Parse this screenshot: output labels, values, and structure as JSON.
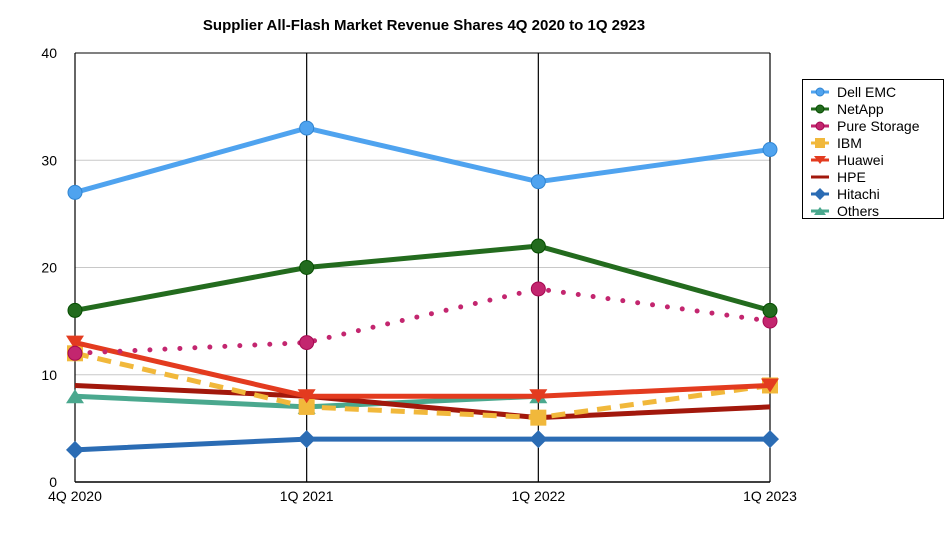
{
  "chart_data": {
    "type": "line",
    "title": "Supplier All-Flash Market Revenue Shares 4Q 2020 to 1Q 2923",
    "xlabel": "",
    "ylabel": "",
    "categories": [
      "4Q 2020",
      "1Q 2021",
      "1Q 2022",
      "1Q 2023"
    ],
    "ylim": [
      0,
      40
    ],
    "yticks": [
      0,
      10,
      20,
      30,
      40
    ],
    "grid": true,
    "legend_position": "right",
    "series": [
      {
        "name": "Dell EMC",
        "values": [
          27,
          33,
          28,
          31
        ],
        "color": "#4fa3ef",
        "marker": "circle",
        "dash": "solid"
      },
      {
        "name": "NetApp",
        "values": [
          16,
          20,
          22,
          16
        ],
        "color": "#236b1e",
        "marker": "circle",
        "dash": "solid"
      },
      {
        "name": "Pure Storage",
        "values": [
          12,
          13,
          18,
          15
        ],
        "color": "#c3266f",
        "marker": "circle",
        "dash": "dotted"
      },
      {
        "name": "IBM",
        "values": [
          12,
          7,
          6,
          9
        ],
        "color": "#f1b83b",
        "marker": "square",
        "dash": "dashed"
      },
      {
        "name": "Huawei",
        "values": [
          13,
          8,
          8,
          9
        ],
        "color": "#e33b1f",
        "marker": "triangle-down",
        "dash": "solid"
      },
      {
        "name": "HPE",
        "values": [
          9,
          8,
          6,
          7
        ],
        "color": "#a2180c",
        "marker": "none",
        "dash": "solid"
      },
      {
        "name": "Hitachi",
        "values": [
          3,
          4,
          4,
          4
        ],
        "color": "#2b6cb4",
        "marker": "diamond",
        "dash": "solid"
      },
      {
        "name": "Others",
        "values": [
          8,
          7,
          8,
          null
        ],
        "color": "#4aa88e",
        "marker": "triangle-up",
        "dash": "solid"
      }
    ]
  }
}
